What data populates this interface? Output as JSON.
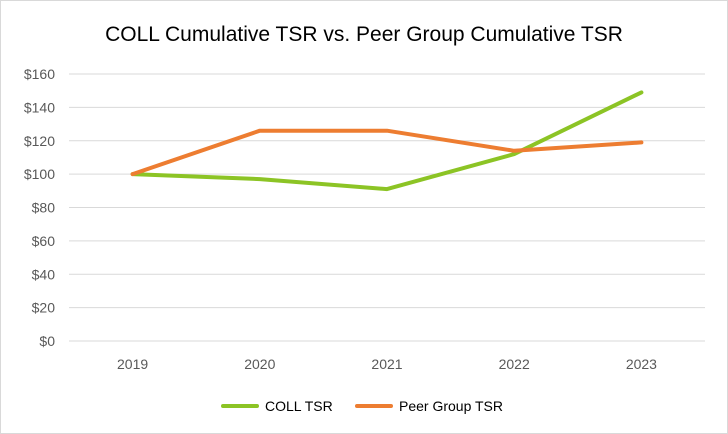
{
  "chart_data": {
    "type": "line",
    "title": "COLL Cumulative TSR vs. Peer Group Cumulative TSR",
    "xlabel": "",
    "ylabel": "",
    "categories": [
      "2019",
      "2020",
      "2021",
      "2022",
      "2023"
    ],
    "ylim": [
      0,
      160
    ],
    "ytick_values": [
      0,
      20,
      40,
      60,
      80,
      100,
      120,
      140,
      160
    ],
    "ytick_labels": [
      "$0",
      "$20",
      "$40",
      "$60",
      "$80",
      "$100",
      "$120",
      "$140",
      "$160"
    ],
    "grid": true,
    "legend_position": "bottom",
    "series": [
      {
        "name": "COLL TSR",
        "color": "#8cc425",
        "values": [
          100,
          97,
          91,
          112,
          149
        ]
      },
      {
        "name": "Peer Group TSR",
        "color": "#ed7d31",
        "values": [
          100,
          126,
          126,
          114,
          119
        ]
      }
    ]
  }
}
